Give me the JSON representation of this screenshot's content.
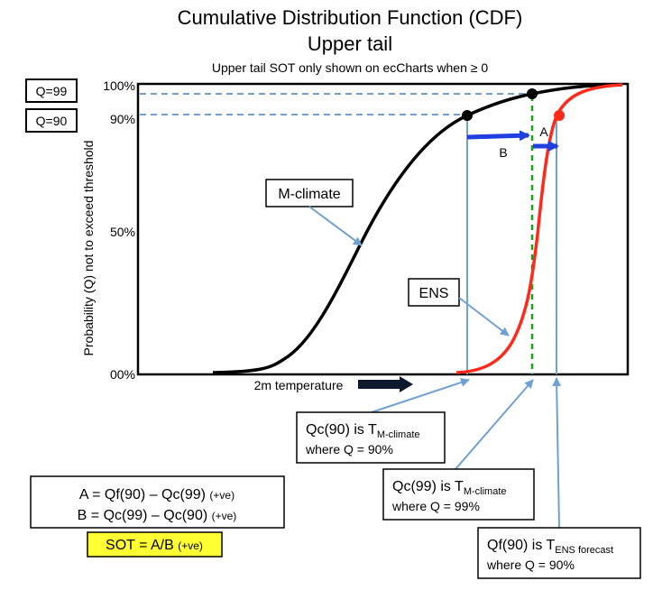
{
  "title": "Cumulative Distribution Function (CDF)",
  "subtitle": "Upper tail",
  "note": "Upper tail SOT only shown on ecCharts when ≥ 0",
  "y_axis": {
    "label": "Probability (Q) not to exceed threshold",
    "ticks": [
      "100%",
      "90%",
      "50%",
      "00%"
    ]
  },
  "x_axis": {
    "label": "2m temperature"
  },
  "q_boxes": [
    "Q=99",
    "Q=90"
  ],
  "curve_labels": {
    "m_climate": "M-climate",
    "ens": "ENS"
  },
  "arrow_labels": {
    "a": "A",
    "b": "B"
  },
  "callouts": {
    "qc90": {
      "line1_prefix": "Qc(90) is T",
      "line1_sub": "M-climate",
      "line2": "where Q = 90%"
    },
    "qc99": {
      "line1_prefix": "Qc(99) is T",
      "line1_sub": "M-climate",
      "line2": "where Q = 99%"
    },
    "qf90": {
      "line1_prefix": "Qf(90) is T",
      "line1_sub": "ENS forecast",
      "line2": "where Q = 90%"
    }
  },
  "formula": {
    "a_main": "A = Qf(90) – Qc(99)",
    "a_suffix": "(+ve)",
    "b_main": "B = Qc(99) – Qc(90)",
    "b_suffix": "(+ve)",
    "sot_main": "SOT = A/B",
    "sot_suffix": "(+ve)"
  },
  "colors": {
    "m_climate_curve": "#000000",
    "ens_curve": "#ff2a1a",
    "guide_lines": "#6fa0d2",
    "arrows": "#1f3fe0",
    "dashed_green": "#1aa31a",
    "sot_highlight": "#ffff33",
    "x_arrow": "#0d1a2e"
  }
}
